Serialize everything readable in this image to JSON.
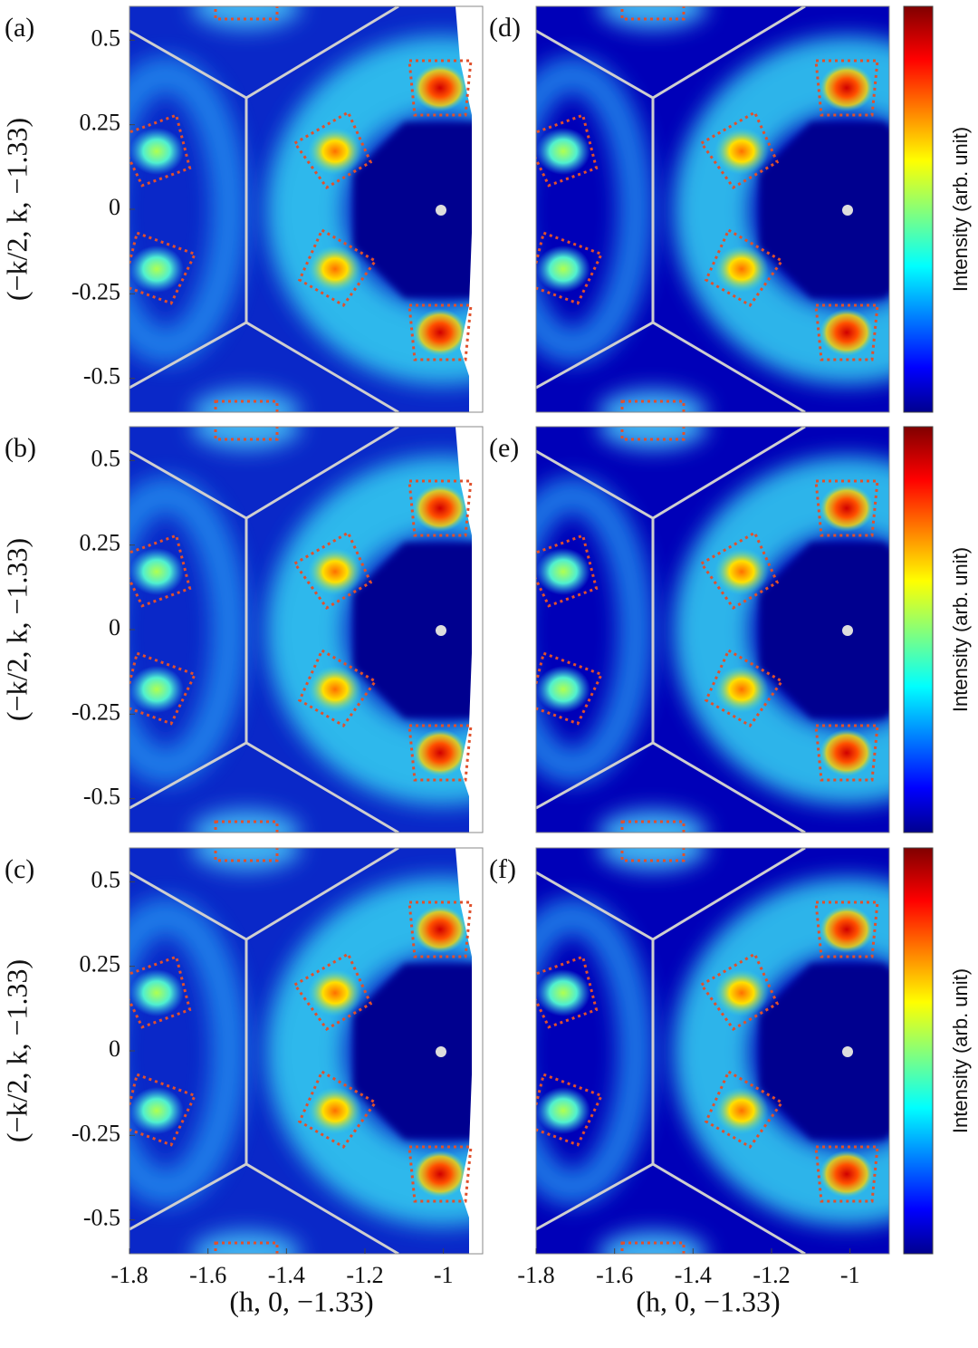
{
  "chart_data": [
    {
      "type": "heatmap",
      "title": "(a)",
      "ylim": [
        -0.6,
        0.6
      ],
      "yticks": [
        0.5,
        0.25,
        0,
        -0.25,
        -0.5
      ],
      "y_label": "(−k/2, k, −1.33)"
    },
    {
      "type": "heatmap",
      "title": "(b)",
      "ylim": [
        -0.6,
        0.6
      ],
      "yticks": [
        0.5,
        0.25,
        0,
        -0.25,
        -0.5
      ],
      "y_label": "(−k/2, k, −1.33)"
    },
    {
      "type": "heatmap",
      "title": "(c)",
      "ylim": [
        -0.6,
        0.6
      ],
      "yticks": [
        0.5,
        0.25,
        0,
        -0.25,
        -0.5
      ],
      "y_label": "(−k/2, k, −1.33)",
      "xlim": [
        -1.8,
        -0.9
      ],
      "xticks": [
        -1.8,
        -1.6,
        -1.4,
        -1.2,
        -1
      ],
      "x_label": "(h, 0, −1.33)"
    },
    {
      "type": "heatmap",
      "title": "(d)",
      "colorbar_label": "Intensity (arb. unit)"
    },
    {
      "type": "heatmap",
      "title": "(e)",
      "colorbar_label": "Intensity (arb. unit)"
    },
    {
      "type": "heatmap",
      "title": "(f)",
      "xlim": [
        -1.8,
        -0.9
      ],
      "xticks": [
        -1.8,
        -1.6,
        -1.4,
        -1.2,
        -1
      ],
      "x_label": "(h, 0, −1.33)",
      "colorbar_label": "Intensity (arb. unit)"
    }
  ]
}
